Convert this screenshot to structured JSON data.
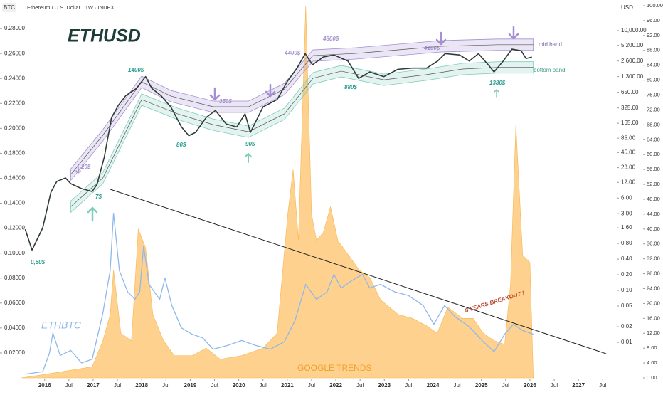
{
  "chart_data": {
    "type": "line",
    "header": "Ethereum / U.S. Dollar · 1W · INDEX",
    "left_axis_label": "BTC",
    "right_axis_label": "USD",
    "xlim": [
      2015.52,
      2027.76
    ],
    "xticks": [
      {
        "value": 2016,
        "label": "2016"
      },
      {
        "value": 2016.5,
        "label": "Jul"
      },
      {
        "value": 2017,
        "label": "2017"
      },
      {
        "value": 2017.5,
        "label": "Jul"
      },
      {
        "value": 2018,
        "label": "2018"
      },
      {
        "value": 2018.5,
        "label": "Jul"
      },
      {
        "value": 2019,
        "label": "2019"
      },
      {
        "value": 2019.5,
        "label": "Jul"
      },
      {
        "value": 2020,
        "label": "2020"
      },
      {
        "value": 2020.5,
        "label": "Jul"
      },
      {
        "value": 2021,
        "label": "2021"
      },
      {
        "value": 2021.5,
        "label": "Jul"
      },
      {
        "value": 2022,
        "label": "2022"
      },
      {
        "value": 2022.5,
        "label": "Jul"
      },
      {
        "value": 2023,
        "label": "2023"
      },
      {
        "value": 2023.5,
        "label": "Jul"
      },
      {
        "value": 2024,
        "label": "2024"
      },
      {
        "value": 2024.5,
        "label": "Jul"
      },
      {
        "value": 2025,
        "label": "2025"
      },
      {
        "value": 2025.5,
        "label": "Jul"
      },
      {
        "value": 2026,
        "label": "2026"
      },
      {
        "value": 2026.5,
        "label": "Jul"
      },
      {
        "value": 2027,
        "label": "2027"
      },
      {
        "value": 2027.5,
        "label": "Jul"
      }
    ],
    "ylim": [
      0,
      0.2983
    ],
    "yticks": [
      {
        "value": 0.02,
        "label": "0.02000"
      },
      {
        "value": 0.04,
        "label": "0.04000"
      },
      {
        "value": 0.06,
        "label": "0.06000"
      },
      {
        "value": 0.08,
        "label": "0.08000"
      },
      {
        "value": 0.1,
        "label": "0.10000"
      },
      {
        "value": 0.12,
        "label": "0.12000"
      },
      {
        "value": 0.14,
        "label": "0.14000"
      },
      {
        "value": 0.16,
        "label": "0.16000"
      },
      {
        "value": 0.18,
        "label": "0.18000"
      },
      {
        "value": 0.2,
        "label": "0.20000"
      },
      {
        "value": 0.22,
        "label": "0.22000"
      },
      {
        "value": 0.24,
        "label": "0.24000"
      },
      {
        "value": 0.26,
        "label": "0.26000"
      },
      {
        "value": 0.28,
        "label": "0.28000"
      }
    ],
    "y2lim": [
      0.00207,
      30150
    ],
    "y2log": true,
    "y2ticks": [
      {
        "value": 0.01,
        "label": "0.01"
      },
      {
        "value": 0.02,
        "label": "0.02"
      },
      {
        "value": 0.05,
        "label": "0.05"
      },
      {
        "value": 0.1,
        "label": "0.10"
      },
      {
        "value": 0.2,
        "label": "0.20"
      },
      {
        "value": 0.4,
        "label": "0.40"
      },
      {
        "value": 0.8,
        "label": "0.80"
      },
      {
        "value": 1.6,
        "label": "1.60"
      },
      {
        "value": 3,
        "label": "3.00"
      },
      {
        "value": 6,
        "label": "6.00"
      },
      {
        "value": 12,
        "label": "12.00"
      },
      {
        "value": 23,
        "label": "23.00"
      },
      {
        "value": 45,
        "label": "45.00"
      },
      {
        "value": 85,
        "label": "85.00"
      },
      {
        "value": 165,
        "label": "165.00"
      },
      {
        "value": 325,
        "label": "325.00"
      },
      {
        "value": 650,
        "label": "650.00"
      },
      {
        "value": 1300,
        "label": "1,300.00"
      },
      {
        "value": 2600,
        "label": "2,600.00"
      },
      {
        "value": 5200,
        "label": "5,200.00"
      },
      {
        "value": 10000,
        "label": "10,000.00"
      }
    ],
    "y3lim": [
      0,
      100
    ],
    "y3ticks": [
      {
        "value": 0,
        "label": "0.00"
      },
      {
        "value": 4,
        "label": "4.00"
      },
      {
        "value": 8,
        "label": "8.00"
      },
      {
        "value": 12,
        "label": "12.00"
      },
      {
        "value": 16,
        "label": "16.00"
      },
      {
        "value": 20,
        "label": "20.00"
      },
      {
        "value": 24,
        "label": "24.00"
      },
      {
        "value": 28,
        "label": "28.00"
      },
      {
        "value": 32,
        "label": "32.00"
      },
      {
        "value": 36,
        "label": "36.00"
      },
      {
        "value": 40,
        "label": "40.00"
      },
      {
        "value": 44,
        "label": "44.00"
      },
      {
        "value": 48,
        "label": "48.00"
      },
      {
        "value": 52,
        "label": "52.00"
      },
      {
        "value": 56,
        "label": "56.00"
      },
      {
        "value": 60,
        "label": "60.00"
      },
      {
        "value": 64,
        "label": "64.00"
      },
      {
        "value": 68,
        "label": "68.00"
      },
      {
        "value": 72,
        "label": "72.00"
      },
      {
        "value": 76,
        "label": "76.00"
      },
      {
        "value": 80,
        "label": "80.00"
      },
      {
        "value": 84,
        "label": "84.00"
      },
      {
        "value": 88,
        "label": "88.00"
      },
      {
        "value": 92,
        "label": "92.00"
      },
      {
        "value": 96,
        "label": "96.00"
      },
      {
        "value": 100,
        "label": "100.00"
      }
    ],
    "grid": false,
    "series": [
      {
        "name": "GOOGLE TRENDS",
        "color": "#ffc97a",
        "axis": "y3",
        "kind": "area",
        "x": [
          2015.52,
          2016.03,
          2016.98,
          2017.2,
          2017.35,
          2017.42,
          2017.57,
          2017.79,
          2017.93,
          2018.08,
          2018.23,
          2018.45,
          2018.67,
          2019.04,
          2019.33,
          2019.62,
          2020.06,
          2020.5,
          2020.79,
          2021.01,
          2021.12,
          2021.23,
          2021.38,
          2021.5,
          2021.6,
          2021.74,
          2021.89,
          2022.04,
          2022.26,
          2022.48,
          2022.7,
          2022.92,
          2023.29,
          2023.58,
          2023.87,
          2024.09,
          2024.31,
          2024.61,
          2024.83,
          2025.04,
          2025.26,
          2025.48,
          2025.6,
          2025.71,
          2025.85,
          2026.0,
          2026.07
        ],
        "values": [
          0,
          1,
          3,
          10,
          17,
          29,
          12,
          10,
          40,
          35,
          17,
          10,
          6,
          6,
          8,
          5,
          6,
          8,
          12,
          44,
          56,
          37,
          100,
          44,
          37,
          39,
          46,
          37,
          33,
          29,
          27,
          21,
          17,
          16,
          14,
          12,
          19,
          16,
          16,
          12,
          10,
          9,
          25,
          68,
          33,
          31,
          0
        ]
      },
      {
        "name": "ETHBTC",
        "color": "#90b8ea",
        "axis": "y",
        "kind": "line",
        "x": [
          2015.6,
          2015.96,
          2016.1,
          2016.17,
          2016.32,
          2016.54,
          2016.76,
          2016.98,
          2017.2,
          2017.35,
          2017.42,
          2017.54,
          2017.71,
          2017.86,
          2017.96,
          2018.04,
          2018.15,
          2018.37,
          2018.48,
          2018.62,
          2018.82,
          2019.04,
          2019.26,
          2019.47,
          2019.77,
          2020.06,
          2020.35,
          2020.65,
          2020.94,
          2021.16,
          2021.38,
          2021.6,
          2021.82,
          2021.96,
          2022.11,
          2022.33,
          2022.55,
          2022.7,
          2022.92,
          2023.21,
          2023.5,
          2023.8,
          2024.02,
          2024.24,
          2024.46,
          2024.75,
          2025.04,
          2025.26,
          2025.48,
          2025.66,
          2025.85,
          2026.07
        ],
        "values": [
          0.003,
          0.005,
          0.02,
          0.036,
          0.018,
          0.022,
          0.012,
          0.015,
          0.052,
          0.086,
          0.132,
          0.086,
          0.069,
          0.063,
          0.069,
          0.106,
          0.075,
          0.063,
          0.08,
          0.058,
          0.04,
          0.035,
          0.032,
          0.023,
          0.026,
          0.03,
          0.026,
          0.023,
          0.029,
          0.046,
          0.075,
          0.063,
          0.069,
          0.083,
          0.072,
          0.078,
          0.083,
          0.072,
          0.075,
          0.069,
          0.066,
          0.058,
          0.043,
          0.058,
          0.049,
          0.041,
          0.029,
          0.021,
          0.035,
          0.043,
          0.038,
          0.035
        ]
      },
      {
        "name": "mid band",
        "color": "#a48fd0",
        "axis": "y2",
        "kind": "band",
        "x": [
          2016.54,
          2017.2,
          2018.0,
          2018.6,
          2019.47,
          2020.2,
          2020.94,
          2021.53,
          2022.41,
          2023.29,
          2024.17,
          2025.34,
          2026.07
        ],
        "values": [
          17,
          97,
          1030,
          550,
          342,
          342,
          750,
          3310,
          3640,
          4270,
          5000,
          5350,
          5350
        ]
      },
      {
        "name": "bottom band",
        "color": "#7fcdb9",
        "axis": "y2",
        "kind": "band",
        "x": [
          2016.54,
          2017.2,
          2018.0,
          2018.74,
          2019.47,
          2020.2,
          2020.94,
          2021.53,
          2022.11,
          2022.99,
          2023.87,
          2024.61,
          2025.34,
          2026.07
        ],
        "values": [
          4.1,
          14.6,
          470,
          250,
          155,
          113,
          250,
          1210,
          1660,
          1130,
          1420,
          1820,
          1960,
          1960
        ]
      },
      {
        "name": "ETHUSD",
        "color": "#2f3b38",
        "axis": "y2",
        "kind": "line",
        "x": [
          2015.6,
          2015.74,
          2015.96,
          2016.13,
          2016.25,
          2016.43,
          2016.54,
          2016.76,
          2016.98,
          2017.08,
          2017.23,
          2017.38,
          2017.52,
          2017.67,
          2017.89,
          2018.08,
          2018.21,
          2018.4,
          2018.6,
          2018.82,
          2018.97,
          2019.11,
          2019.33,
          2019.52,
          2019.74,
          2019.96,
          2020.13,
          2020.24,
          2020.5,
          2020.79,
          2021.0,
          2021.2,
          2021.37,
          2021.52,
          2021.74,
          2021.96,
          2022.25,
          2022.47,
          2022.7,
          2022.99,
          2023.28,
          2023.58,
          2023.87,
          2024.1,
          2024.25,
          2024.55,
          2024.75,
          2024.94,
          2025.16,
          2025.26,
          2025.45,
          2025.63,
          2025.82,
          2025.92,
          2026.04
        ],
        "values": [
          1.5,
          0.6,
          1.6,
          7.8,
          12.5,
          14.6,
          11.3,
          9.1,
          8,
          11,
          37,
          213,
          366,
          557,
          770,
          1300,
          770,
          557,
          340,
          140,
          95,
          110,
          213,
          290,
          160,
          140,
          250,
          110,
          340,
          470,
          1050,
          1900,
          3600,
          2200,
          3100,
          3400,
          2600,
          1200,
          1600,
          1300,
          1800,
          1900,
          1900,
          2600,
          3600,
          3400,
          2600,
          3600,
          2100,
          1600,
          2600,
          4400,
          4100,
          2900,
          3100
        ]
      }
    ],
    "annotations": [
      "0,50$",
      "20$",
      "7$",
      "1400$",
      "80$",
      "350$",
      "90$",
      "4400$",
      "4800$",
      "880$",
      "4100$",
      "1380$",
      "8 YEARS BREAKOUT !"
    ]
  }
}
